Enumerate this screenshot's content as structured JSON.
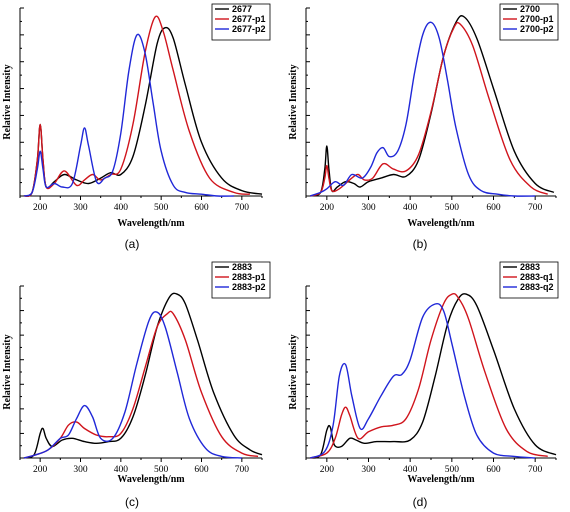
{
  "chart_data": [
    {
      "type": "line",
      "panel_label": "(a)",
      "xlabel": "Wavelength/nm",
      "ylabel": "Relative Intensity",
      "xlim": [
        150,
        750
      ],
      "ylim": [
        0,
        1.05
      ],
      "xticks": [
        "200",
        "300",
        "400",
        "500",
        "600",
        "700"
      ],
      "legend_position": "top-right",
      "series": [
        {
          "name": "2677",
          "color": "#000000",
          "x": [
            160,
            180,
            193,
            200,
            207,
            215,
            235,
            260,
            290,
            320,
            350,
            375,
            400,
            430,
            460,
            490,
            510,
            530,
            560,
            600,
            650,
            700,
            750
          ],
          "y": [
            0.0,
            0.02,
            0.2,
            0.4,
            0.2,
            0.05,
            0.08,
            0.12,
            0.09,
            0.07,
            0.1,
            0.13,
            0.12,
            0.22,
            0.5,
            0.85,
            0.94,
            0.88,
            0.62,
            0.3,
            0.1,
            0.03,
            0.01
          ]
        },
        {
          "name": "2677-p1",
          "color": "#d0141c",
          "x": [
            160,
            180,
            193,
            200,
            207,
            215,
            235,
            260,
            290,
            310,
            330,
            350,
            375,
            400,
            430,
            460,
            485,
            505,
            530,
            570,
            620,
            680,
            720
          ],
          "y": [
            0.0,
            0.02,
            0.2,
            0.4,
            0.2,
            0.05,
            0.07,
            0.14,
            0.06,
            0.09,
            0.12,
            0.09,
            0.12,
            0.15,
            0.4,
            0.8,
            1.0,
            0.92,
            0.7,
            0.36,
            0.1,
            0.02,
            0.01
          ]
        },
        {
          "name": "2677-p2",
          "color": "#2028d8",
          "x": [
            160,
            180,
            193,
            200,
            207,
            215,
            235,
            255,
            280,
            300,
            310,
            320,
            340,
            360,
            380,
            400,
            420,
            440,
            460,
            480,
            500,
            530,
            560,
            600,
            640,
            680
          ],
          "y": [
            0.0,
            0.02,
            0.15,
            0.25,
            0.15,
            0.05,
            0.07,
            0.05,
            0.07,
            0.28,
            0.38,
            0.28,
            0.08,
            0.1,
            0.14,
            0.35,
            0.7,
            0.9,
            0.8,
            0.52,
            0.25,
            0.06,
            0.02,
            0.01,
            0.0,
            0.0
          ]
        }
      ]
    },
    {
      "type": "line",
      "panel_label": "(b)",
      "xlabel": "Wavelength/nm",
      "ylabel": "Relative Intensity",
      "xlim": [
        150,
        750
      ],
      "ylim": [
        0,
        1.05
      ],
      "xticks": [
        "200",
        "300",
        "400",
        "500",
        "600",
        "700"
      ],
      "legend_position": "top-right",
      "series": [
        {
          "name": "2700",
          "color": "#000000",
          "x": [
            160,
            185,
            195,
            200,
            205,
            212,
            225,
            245,
            265,
            280,
            300,
            330,
            360,
            390,
            420,
            450,
            480,
            510,
            530,
            560,
            600,
            650,
            700,
            745
          ],
          "y": [
            0.0,
            0.02,
            0.15,
            0.28,
            0.15,
            0.03,
            0.05,
            0.08,
            0.07,
            0.05,
            0.08,
            0.1,
            0.12,
            0.11,
            0.2,
            0.46,
            0.78,
            0.97,
            1.0,
            0.88,
            0.6,
            0.25,
            0.07,
            0.02
          ]
        },
        {
          "name": "2700-p1",
          "color": "#d0141c",
          "x": [
            160,
            185,
            195,
            200,
            205,
            212,
            230,
            260,
            275,
            290,
            310,
            335,
            360,
            390,
            420,
            450,
            480,
            505,
            520,
            550,
            590,
            640,
            690,
            730
          ],
          "y": [
            0.0,
            0.02,
            0.1,
            0.17,
            0.1,
            0.03,
            0.04,
            0.1,
            0.12,
            0.09,
            0.1,
            0.18,
            0.15,
            0.14,
            0.23,
            0.47,
            0.78,
            0.94,
            0.96,
            0.84,
            0.54,
            0.2,
            0.05,
            0.01
          ]
        },
        {
          "name": "2700-p2",
          "color": "#2028d8",
          "x": [
            160,
            185,
            200,
            220,
            240,
            260,
            285,
            305,
            320,
            335,
            350,
            370,
            390,
            410,
            430,
            450,
            470,
            490,
            510,
            540,
            570,
            610,
            650,
            700
          ],
          "y": [
            0.0,
            0.02,
            0.04,
            0.08,
            0.06,
            0.12,
            0.1,
            0.16,
            0.24,
            0.27,
            0.22,
            0.25,
            0.4,
            0.68,
            0.9,
            0.97,
            0.88,
            0.64,
            0.38,
            0.12,
            0.03,
            0.01,
            0.0,
            0.0
          ]
        }
      ]
    },
    {
      "type": "line",
      "panel_label": "(c)",
      "xlabel": "Wavelength/nm",
      "ylabel": "Relative Intensity",
      "xlim": [
        150,
        750
      ],
      "ylim": [
        0,
        1.05
      ],
      "xticks": [
        "200",
        "300",
        "400",
        "500",
        "600",
        "700"
      ],
      "legend_position": "top-right",
      "series": [
        {
          "name": "2883",
          "color": "#000000",
          "x": [
            160,
            185,
            200,
            207,
            215,
            230,
            255,
            280,
            310,
            340,
            370,
            400,
            430,
            460,
            490,
            520,
            540,
            560,
            590,
            630,
            680,
            720,
            750
          ],
          "y": [
            0.0,
            0.02,
            0.15,
            0.18,
            0.12,
            0.07,
            0.11,
            0.12,
            0.1,
            0.09,
            0.1,
            0.12,
            0.25,
            0.5,
            0.8,
            0.98,
            1.0,
            0.94,
            0.72,
            0.4,
            0.14,
            0.05,
            0.02
          ]
        },
        {
          "name": "2883-p1",
          "color": "#d0141c",
          "x": [
            160,
            190,
            220,
            250,
            270,
            290,
            310,
            340,
            370,
            400,
            430,
            460,
            490,
            515,
            530,
            560,
            600,
            650,
            700,
            740
          ],
          "y": [
            0.0,
            0.02,
            0.05,
            0.12,
            0.2,
            0.22,
            0.18,
            0.14,
            0.13,
            0.15,
            0.3,
            0.55,
            0.8,
            0.88,
            0.88,
            0.72,
            0.4,
            0.13,
            0.03,
            0.01
          ]
        },
        {
          "name": "2883-p2",
          "color": "#2028d8",
          "x": [
            160,
            190,
            220,
            250,
            270,
            290,
            310,
            330,
            350,
            380,
            410,
            440,
            470,
            490,
            510,
            540,
            570,
            610,
            650,
            700
          ],
          "y": [
            0.0,
            0.02,
            0.05,
            0.12,
            0.14,
            0.24,
            0.32,
            0.25,
            0.12,
            0.12,
            0.28,
            0.58,
            0.84,
            0.89,
            0.8,
            0.52,
            0.24,
            0.06,
            0.01,
            0.0
          ]
        }
      ]
    },
    {
      "type": "line",
      "panel_label": "(d)",
      "xlabel": "Wavelength/nm",
      "ylabel": "Relative Intensity",
      "xlim": [
        150,
        750
      ],
      "ylim": [
        0,
        1.05
      ],
      "xticks": [
        "200",
        "300",
        "400",
        "500",
        "600",
        "700"
      ],
      "legend_position": "top-right",
      "series": [
        {
          "name": "2883",
          "color": "#000000",
          "x": [
            160,
            185,
            200,
            208,
            218,
            235,
            255,
            270,
            290,
            320,
            360,
            400,
            430,
            460,
            490,
            515,
            535,
            560,
            600,
            650,
            700,
            750
          ],
          "y": [
            0.0,
            0.02,
            0.17,
            0.19,
            0.08,
            0.07,
            0.12,
            0.11,
            0.09,
            0.1,
            0.1,
            0.11,
            0.22,
            0.5,
            0.82,
            0.97,
            1.0,
            0.93,
            0.66,
            0.3,
            0.08,
            0.02
          ]
        },
        {
          "name": "2883-q1",
          "color": "#d0141c",
          "x": [
            160,
            200,
            220,
            235,
            245,
            255,
            275,
            300,
            330,
            360,
            390,
            420,
            450,
            480,
            500,
            515,
            540,
            580,
            630,
            680,
            730
          ],
          "y": [
            0.0,
            0.03,
            0.12,
            0.26,
            0.31,
            0.26,
            0.12,
            0.16,
            0.19,
            0.2,
            0.24,
            0.42,
            0.72,
            0.94,
            1.0,
            0.98,
            0.85,
            0.52,
            0.18,
            0.04,
            0.01
          ]
        },
        {
          "name": "2883-q2",
          "color": "#2028d8",
          "x": [
            160,
            195,
            215,
            230,
            245,
            260,
            280,
            300,
            330,
            360,
            380,
            400,
            430,
            460,
            480,
            500,
            530,
            560,
            600,
            650,
            700
          ],
          "y": [
            0.0,
            0.04,
            0.2,
            0.5,
            0.57,
            0.38,
            0.18,
            0.24,
            0.38,
            0.5,
            0.51,
            0.6,
            0.86,
            0.94,
            0.9,
            0.7,
            0.38,
            0.14,
            0.03,
            0.01,
            0.0
          ]
        }
      ]
    }
  ]
}
